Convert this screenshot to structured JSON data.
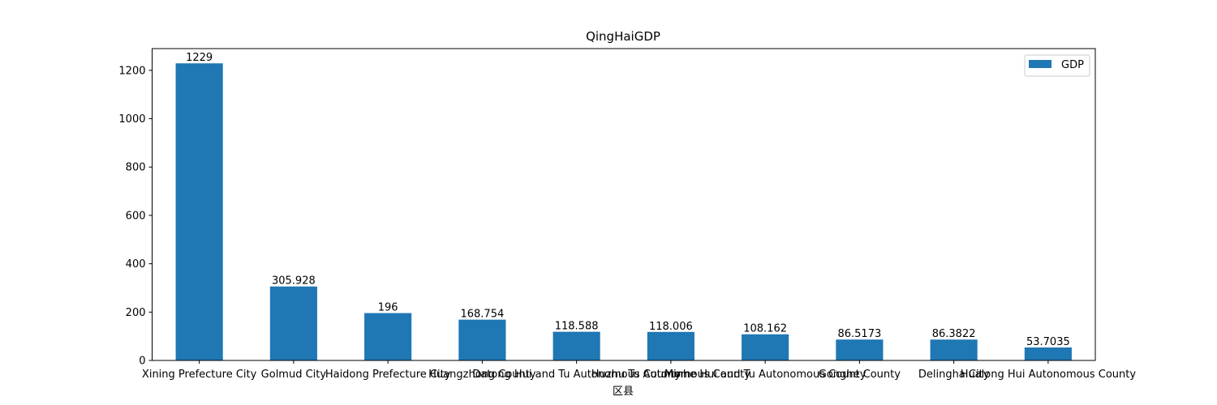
{
  "chart_data": {
    "type": "bar",
    "title": "QingHaiGDP",
    "xlabel": "区县",
    "ylabel": "",
    "ylim": [
      0,
      1290
    ],
    "yticks": [
      0,
      200,
      400,
      600,
      800,
      1000,
      1200
    ],
    "legend_position": "top-right",
    "grid": false,
    "bar_color": "#1f77b4",
    "categories": [
      "Xining Prefecture City",
      "Golmud City",
      "Haidong Prefecture City",
      "Huangzhong County",
      "Datong Hui and Tu Autonomous County",
      "Huzhu Tu Autonomous County",
      "Minhe Hui and Tu Autonomous County",
      "Gonghe County",
      "Delingha City",
      "Hualong Hui Autonomous County"
    ],
    "series": [
      {
        "name": "GDP",
        "values": [
          1229,
          305.928,
          196,
          168.754,
          118.588,
          118.006,
          108.162,
          86.5173,
          86.3822,
          53.7035
        ],
        "labels": [
          "1229",
          "305.928",
          "196",
          "168.754",
          "118.588",
          "118.006",
          "108.162",
          "86.5173",
          "86.3822",
          "53.7035"
        ]
      }
    ]
  }
}
